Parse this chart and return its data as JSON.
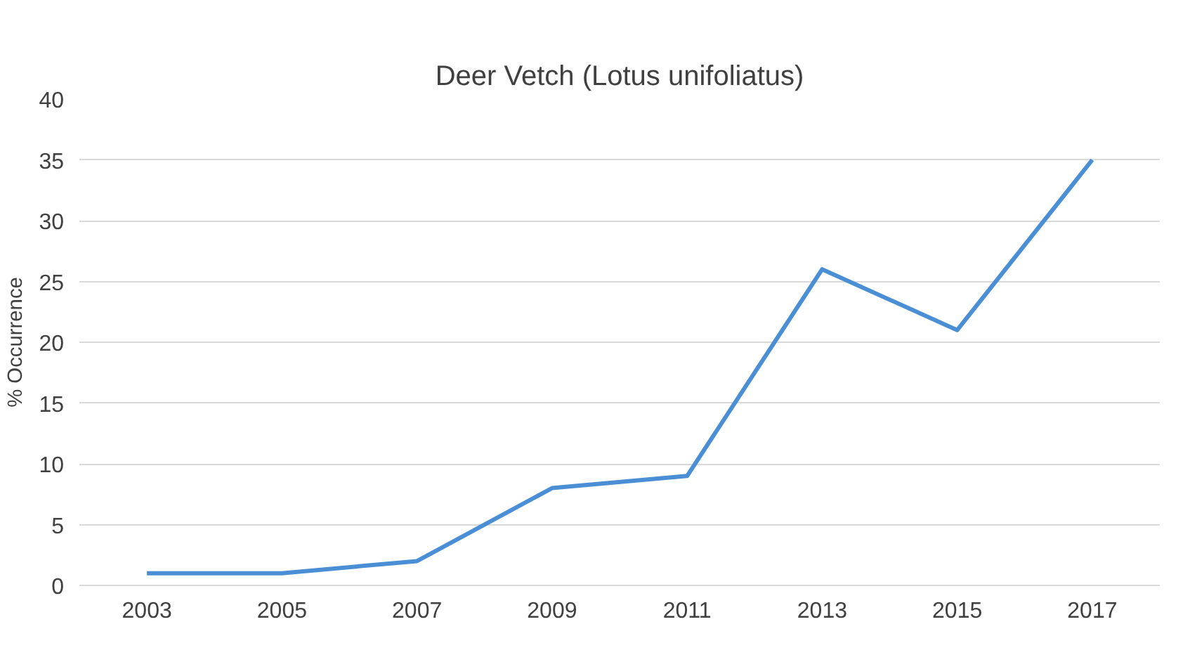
{
  "chart_data": {
    "type": "line",
    "title": "Deer Vetch (Lotus unifoliatus)",
    "ylabel": "% Occurrence",
    "categories": [
      "2003",
      "2005",
      "2007",
      "2009",
      "2011",
      "2013",
      "2015",
      "2017"
    ],
    "series": [
      {
        "color": "#4a8fd6",
        "values": [
          1,
          1,
          2,
          8,
          9,
          26,
          21,
          35
        ]
      }
    ],
    "ylim": [
      0,
      40
    ],
    "yticks": [
      0,
      5,
      10,
      15,
      20,
      25,
      30,
      35,
      40
    ],
    "grid": "y",
    "marker": "none",
    "line_style": "solid"
  }
}
